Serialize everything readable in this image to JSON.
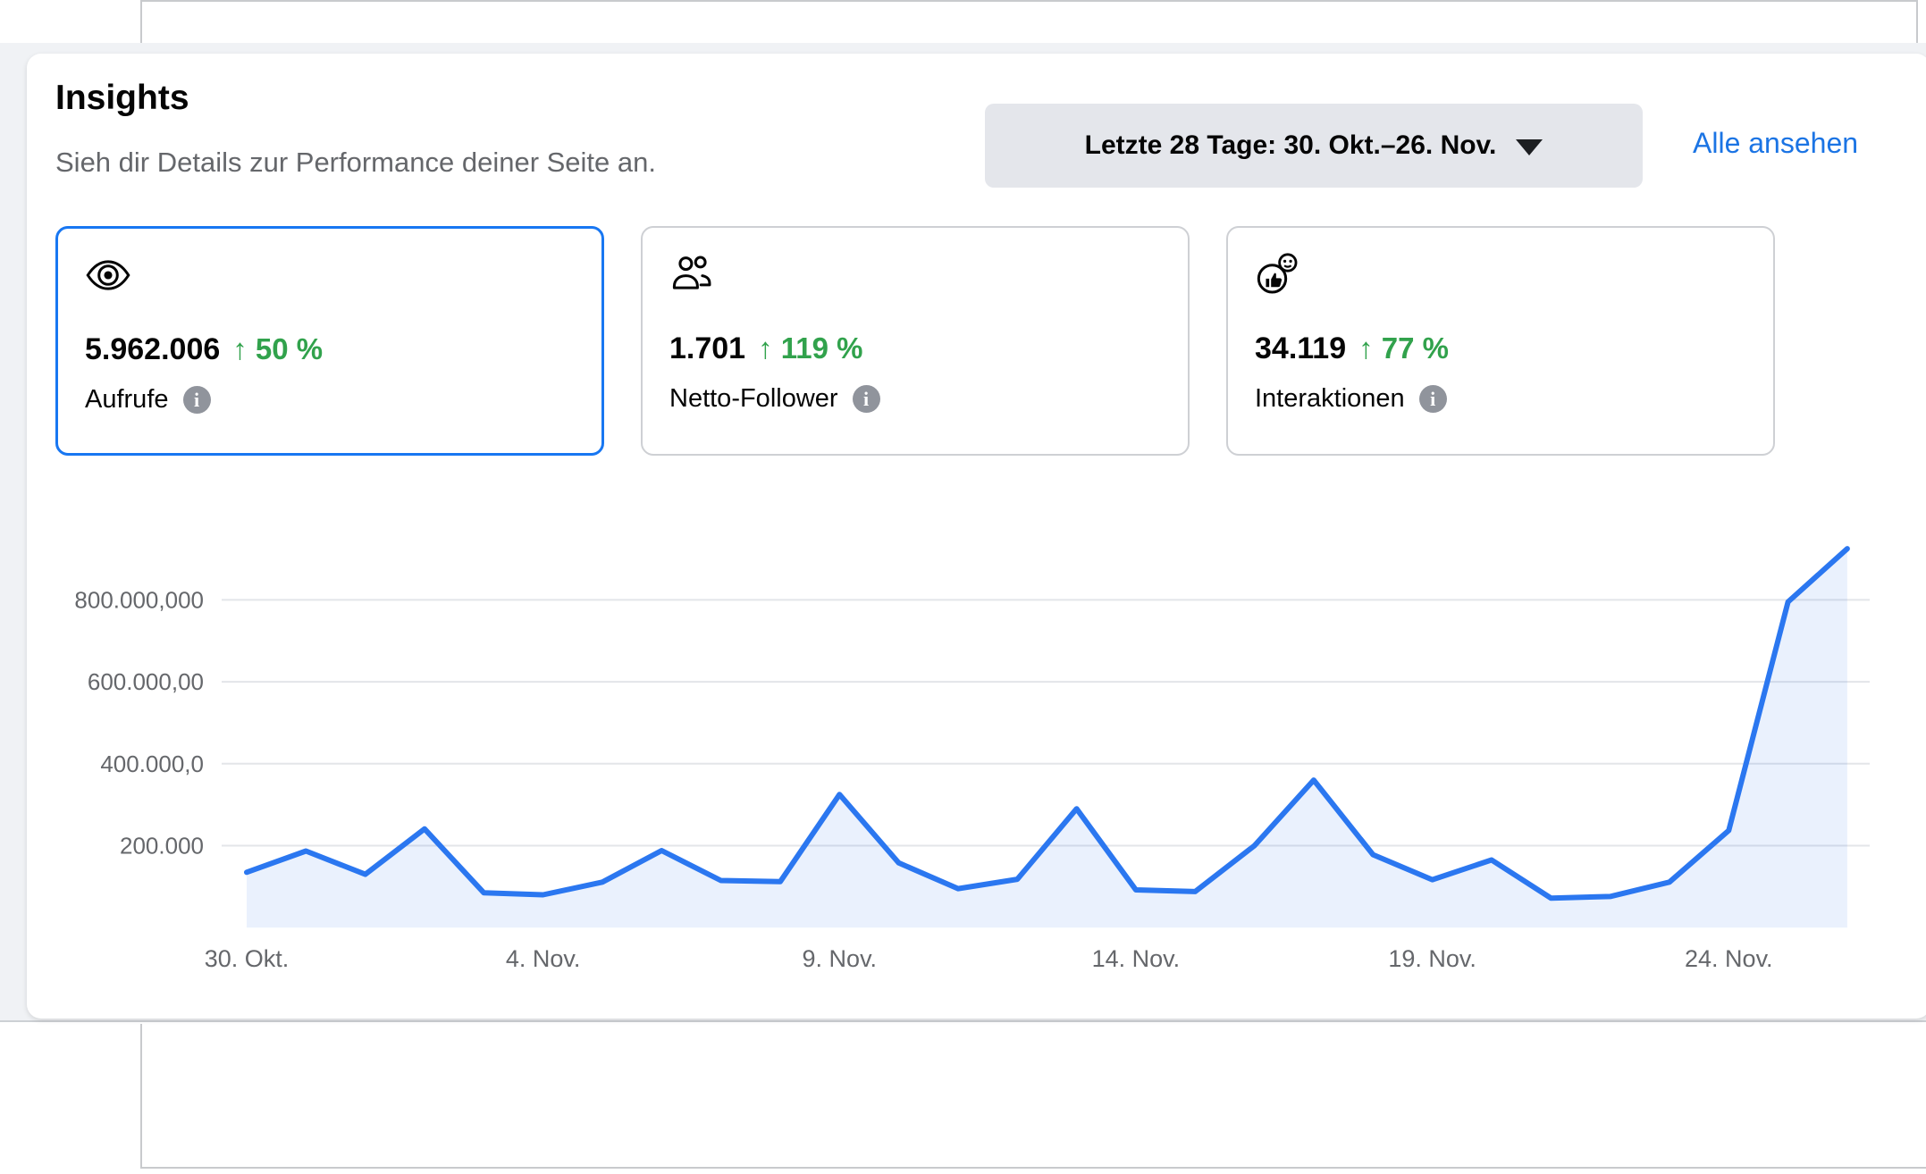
{
  "header": {
    "title": "Insights",
    "subtitle": "Sieh dir Details zur Performance deiner Seite an.",
    "range_selector": "Letzte 28 Tage: 30. Okt.–26. Nov.",
    "see_all": "Alle ansehen"
  },
  "stats": [
    {
      "icon": "eye-icon",
      "value": "5.962.006",
      "change_label": "↑ 50 %",
      "direction": "up",
      "label": "Aufrufe",
      "selected": true
    },
    {
      "icon": "followers-icon",
      "value": "1.701",
      "change_label": "↑ 119 %",
      "direction": "up",
      "label": "Netto-Follower",
      "selected": false
    },
    {
      "icon": "reactions-icon",
      "value": "34.119",
      "change_label": "↑ 77 %",
      "direction": "up",
      "label": "Interaktionen",
      "selected": false
    }
  ],
  "colors": {
    "accent_blue": "#1877f2",
    "chart_line": "#2b77f0",
    "chart_fill": "rgba(45,119,240,0.10)",
    "positive_green": "#31a24c",
    "gridline": "#e3e5e9",
    "axis_text": "#65676b",
    "page_background": "#f0f2f5",
    "button_background": "#e4e6eb",
    "link_blue": "#1b74e4"
  },
  "chart_data": {
    "type": "area",
    "title": "",
    "xlabel": "",
    "ylabel": "",
    "legend": "none",
    "grid": "horizontal",
    "x": [
      "30. Okt.",
      "31. Okt.",
      "1. Nov.",
      "2. Nov.",
      "3. Nov.",
      "4. Nov.",
      "5. Nov.",
      "6. Nov.",
      "7. Nov.",
      "8. Nov.",
      "9. Nov.",
      "10. Nov.",
      "11. Nov.",
      "12. Nov.",
      "13. Nov.",
      "14. Nov.",
      "15. Nov.",
      "16. Nov.",
      "17. Nov.",
      "18. Nov.",
      "19. Nov.",
      "20. Nov.",
      "21. Nov.",
      "22. Nov.",
      "23. Nov.",
      "24. Nov.",
      "25. Nov.",
      "26. Nov."
    ],
    "values": [
      135000,
      187000,
      130000,
      241000,
      85000,
      80000,
      111000,
      188000,
      115000,
      112000,
      325000,
      158000,
      95000,
      118000,
      290000,
      92000,
      88000,
      200000,
      360000,
      178000,
      117000,
      165000,
      72000,
      76000,
      111000,
      237000,
      795000,
      925000
    ],
    "y_tick_values": [
      800000,
      600000,
      400000,
      200000
    ],
    "y_tick_labels": [
      "800.000,000",
      "600.000,00",
      "400.000,0",
      "200.000"
    ],
    "x_tick_indices": [
      0,
      5,
      10,
      15,
      20,
      25
    ],
    "x_tick_labels": [
      "30. Okt.",
      "4. Nov.",
      "9. Nov.",
      "14. Nov.",
      "19. Nov.",
      "24. Nov."
    ],
    "ylim": [
      0,
      960000
    ]
  }
}
